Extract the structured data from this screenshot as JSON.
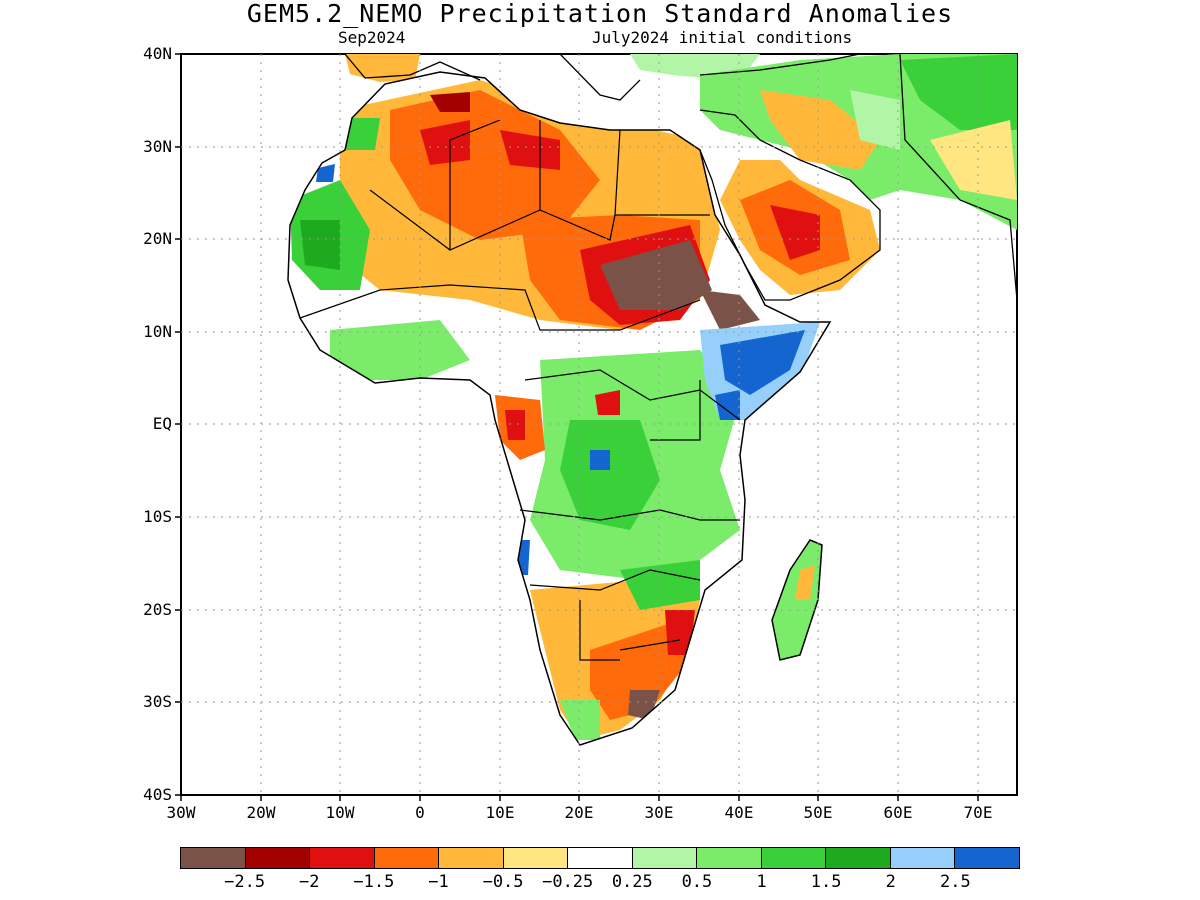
{
  "header": {
    "title": "GEM5.2_NEMO Precipitation Standard Anomalies",
    "valid_month": "Sep2024",
    "init_conditions": "July2024 initial conditions"
  },
  "map": {
    "lat_labels": [
      "40N",
      "30N",
      "20N",
      "10N",
      "EQ",
      "10S",
      "20S",
      "30S",
      "40S"
    ],
    "lon_labels": [
      "30W",
      "20W",
      "10W",
      "0",
      "10E",
      "20E",
      "30E",
      "40E",
      "50E",
      "60E",
      "70E"
    ],
    "lon_range": [
      -30,
      75
    ],
    "lat_range": [
      -40,
      40
    ],
    "grid": "dotted"
  },
  "colorbar": {
    "colors": [
      "#7b5248",
      "#a30000",
      "#e01010",
      "#ff6a0a",
      "#ffb83a",
      "#ffe680",
      "#ffffff",
      "#b2f5a6",
      "#7aec6a",
      "#3ad03a",
      "#1eaa1e",
      "#96d0fa",
      "#1565d0"
    ],
    "labels": [
      "−2.5",
      "−2",
      "−1.5",
      "−1",
      "−0.5",
      "−0.25",
      "0.25",
      "0.5",
      "1",
      "1.5",
      "2",
      "2.5"
    ]
  }
}
